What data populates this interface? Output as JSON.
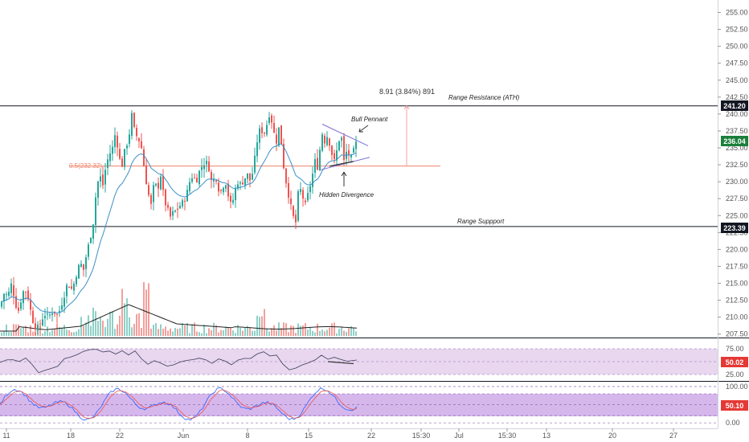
{
  "chart_data": [
    {
      "type": "candlestick",
      "y_axis_ticks": [
        "255.00",
        "252.50",
        "250.00",
        "247.50",
        "245.00",
        "242.50",
        "240.00",
        "237.50",
        "235.00",
        "232.50",
        "230.00",
        "227.50",
        "225.00",
        "222.50",
        "220.00",
        "217.50",
        "215.00",
        "212.50",
        "210.00",
        "207.50"
      ],
      "ylim": [
        206.5,
        257.0
      ],
      "x_axis_ticks": [
        "11",
        "18",
        "22",
        "Jun",
        "8",
        "15",
        "22",
        "15:30",
        "Jul",
        "15:30",
        "13",
        "20",
        "27"
      ],
      "price_labels": {
        "resistance": {
          "value": 241.2,
          "text": "241.20",
          "color": "#131722"
        },
        "current": {
          "value": 236.04,
          "text": "236.04",
          "color": "#1b7f3b"
        },
        "support": {
          "value": 223.39,
          "text": "223.39",
          "color": "#131722"
        }
      },
      "annotations": {
        "range_resistance": "Range Resistance (ATH)",
        "range_support": "Range Suppport",
        "bull_pennant": "Bull Pennant",
        "hidden_divergence": "Hidden Divergence",
        "fib_level": "0.5(232.32)",
        "measure": "8.91 (3.84%) 891"
      },
      "fib_value": 232.32,
      "colors": {
        "up": "#26a69a",
        "down": "#ef5350",
        "ma": "#3a8fc7",
        "volume_ma": "#222222",
        "fib": "#f0826a"
      }
    },
    {
      "type": "line",
      "indicator": "RSI",
      "y_axis_ticks": [
        "75.00",
        "25.00"
      ],
      "ylim": [
        20,
        80
      ],
      "last_value_label": "50.02",
      "badge_color": "#e53935"
    },
    {
      "type": "line",
      "indicator": "Stochastic RSI",
      "y_axis_ticks": [
        "100.00",
        "50.00",
        "0.00"
      ],
      "ylim": [
        -5,
        110
      ],
      "last_value_label": "50.10",
      "badge_color": "#e53935"
    }
  ]
}
